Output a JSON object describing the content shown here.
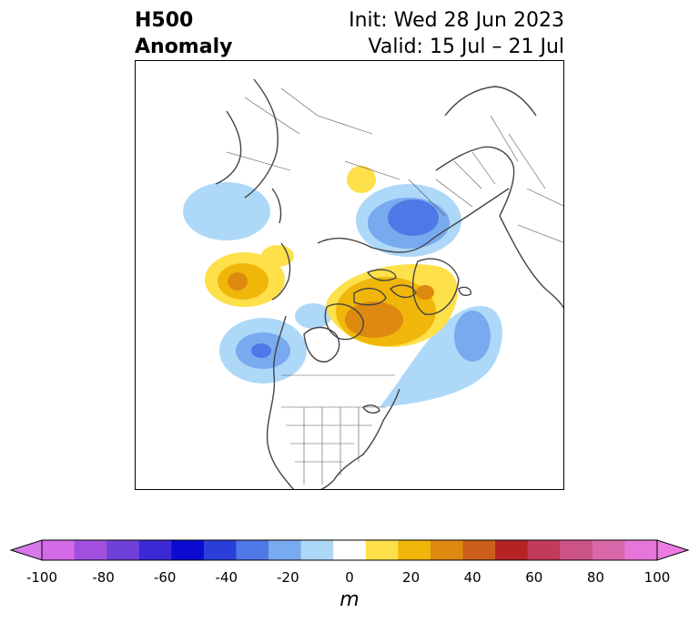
{
  "title": {
    "variable": "H500",
    "field": "Anomaly",
    "init": "Init: Wed 28 Jun 2023",
    "valid": "Valid: 15 Jul – 21 Jul"
  },
  "colorbar": {
    "unit": "m",
    "ticks": [
      "-100",
      "-80",
      "-60",
      "-40",
      "-20",
      "0",
      "20",
      "40",
      "60",
      "80",
      "100"
    ],
    "colors": [
      "#d36be8",
      "#a24fe0",
      "#7041d9",
      "#3d28d6",
      "#0a0ad0",
      "#2a3fd8",
      "#4f78e6",
      "#78aaf0",
      "#aed8f8",
      "#ffffff",
      "#fde04a",
      "#f1b60a",
      "#de8a10",
      "#cc5e1a",
      "#b42424",
      "#c23b58",
      "#cc5385",
      "#d968ab",
      "#e676d9"
    ],
    "under_color": "#d878ea",
    "over_color": "#ec7be2",
    "range": [
      -100,
      100
    ]
  },
  "map_legend": {
    "land_outline": "#444444",
    "neg_light": "#aed8f8",
    "neg_mid": "#78aaf0",
    "neg_dark": "#4f78e6",
    "pos_light": "#fde04a",
    "pos_mid": "#f1b60a",
    "pos_dark": "#de8a10"
  }
}
